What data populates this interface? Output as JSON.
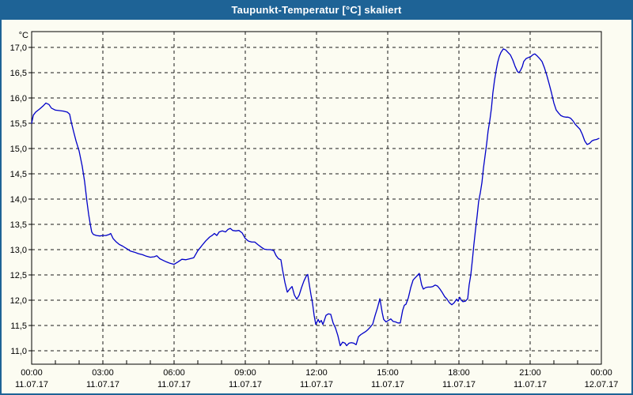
{
  "window": {
    "title": "Taupunkt-Temperatur [°C] skaliert"
  },
  "colors": {
    "titlebar_bg": "#1E6396",
    "title_text": "#FFFFFF",
    "frame_border": "#1E6396",
    "client_bg": "#FCFCF2",
    "plot_border": "#000000",
    "grid": "#1A1A1A",
    "line": "#0000C8",
    "tick_text": "#000000"
  },
  "chart_data": {
    "type": "line",
    "title": "Taupunkt-Temperatur [°C] skaliert",
    "y_unit": "°C",
    "xlabel": "",
    "ylabel": "Taupunkt-Temperatur [°C]",
    "x_axis_hours_range": [
      0,
      24
    ],
    "ylim": [
      10.75,
      17.3
    ],
    "grid": "dashed horizontal and vertical",
    "legend_position": "none",
    "y_ticks": [
      {
        "value": 17.0,
        "label": "17,0"
      },
      {
        "value": 16.5,
        "label": "16,5"
      },
      {
        "value": 16.0,
        "label": "16,0"
      },
      {
        "value": 15.5,
        "label": "15,5"
      },
      {
        "value": 15.0,
        "label": "15,0"
      },
      {
        "value": 14.5,
        "label": "14,5"
      },
      {
        "value": 14.0,
        "label": "14,0"
      },
      {
        "value": 13.5,
        "label": "13,5"
      },
      {
        "value": 13.0,
        "label": "13,0"
      },
      {
        "value": 12.5,
        "label": "12,5"
      },
      {
        "value": 12.0,
        "label": "12,0"
      },
      {
        "value": 11.5,
        "label": "11,5"
      },
      {
        "value": 11.0,
        "label": "11,0"
      }
    ],
    "x_ticks": [
      {
        "hour": 0,
        "time": "00:00",
        "date": "11.07.17"
      },
      {
        "hour": 3,
        "time": "03:00",
        "date": "11.07.17"
      },
      {
        "hour": 6,
        "time": "06:00",
        "date": "11.07.17"
      },
      {
        "hour": 9,
        "time": "09:00",
        "date": "11.07.17"
      },
      {
        "hour": 12,
        "time": "12:00",
        "date": "11.07.17"
      },
      {
        "hour": 15,
        "time": "15:00",
        "date": "11.07.17"
      },
      {
        "hour": 18,
        "time": "18:00",
        "date": "11.07.17"
      },
      {
        "hour": 21,
        "time": "21:00",
        "date": "11.07.17"
      },
      {
        "hour": 24,
        "time": "00:00",
        "date": "12.07.17"
      }
    ],
    "minor_tick_every_hours": 1,
    "series": [
      {
        "name": "Taupunkt-Temperatur",
        "points": [
          [
            0.0,
            15.5
          ],
          [
            0.07,
            15.66
          ],
          [
            0.17,
            15.72
          ],
          [
            0.33,
            15.78
          ],
          [
            0.5,
            15.85
          ],
          [
            0.6,
            15.9
          ],
          [
            0.73,
            15.87
          ],
          [
            0.83,
            15.8
          ],
          [
            1.0,
            15.76
          ],
          [
            1.17,
            15.75
          ],
          [
            1.33,
            15.74
          ],
          [
            1.5,
            15.72
          ],
          [
            1.6,
            15.68
          ],
          [
            1.67,
            15.52
          ],
          [
            1.77,
            15.33
          ],
          [
            1.87,
            15.15
          ],
          [
            2.0,
            14.95
          ],
          [
            2.13,
            14.65
          ],
          [
            2.23,
            14.35
          ],
          [
            2.33,
            13.95
          ],
          [
            2.4,
            13.7
          ],
          [
            2.47,
            13.5
          ],
          [
            2.53,
            13.35
          ],
          [
            2.6,
            13.3
          ],
          [
            2.73,
            13.28
          ],
          [
            2.87,
            13.27
          ],
          [
            3.0,
            13.28
          ],
          [
            3.13,
            13.28
          ],
          [
            3.27,
            13.3
          ],
          [
            3.33,
            13.32
          ],
          [
            3.43,
            13.22
          ],
          [
            3.57,
            13.15
          ],
          [
            3.7,
            13.1
          ],
          [
            3.83,
            13.07
          ],
          [
            4.0,
            13.02
          ],
          [
            4.17,
            12.97
          ],
          [
            4.33,
            12.95
          ],
          [
            4.5,
            12.92
          ],
          [
            4.67,
            12.9
          ],
          [
            4.83,
            12.87
          ],
          [
            5.0,
            12.85
          ],
          [
            5.17,
            12.86
          ],
          [
            5.27,
            12.88
          ],
          [
            5.4,
            12.82
          ],
          [
            5.53,
            12.79
          ],
          [
            5.67,
            12.76
          ],
          [
            5.83,
            12.73
          ],
          [
            6.0,
            12.71
          ],
          [
            6.17,
            12.76
          ],
          [
            6.33,
            12.81
          ],
          [
            6.5,
            12.8
          ],
          [
            6.67,
            12.82
          ],
          [
            6.83,
            12.84
          ],
          [
            7.0,
            12.98
          ],
          [
            7.17,
            13.08
          ],
          [
            7.33,
            13.17
          ],
          [
            7.5,
            13.25
          ],
          [
            7.6,
            13.28
          ],
          [
            7.7,
            13.32
          ],
          [
            7.8,
            13.28
          ],
          [
            7.9,
            13.35
          ],
          [
            8.03,
            13.37
          ],
          [
            8.17,
            13.35
          ],
          [
            8.27,
            13.4
          ],
          [
            8.37,
            13.42
          ],
          [
            8.47,
            13.38
          ],
          [
            8.6,
            13.37
          ],
          [
            8.73,
            13.38
          ],
          [
            8.87,
            13.33
          ],
          [
            9.0,
            13.22
          ],
          [
            9.13,
            13.17
          ],
          [
            9.27,
            13.15
          ],
          [
            9.4,
            13.15
          ],
          [
            9.53,
            13.1
          ],
          [
            9.67,
            13.05
          ],
          [
            9.8,
            13.01
          ],
          [
            9.93,
            13.0
          ],
          [
            10.07,
            13.0
          ],
          [
            10.2,
            12.98
          ],
          [
            10.3,
            12.88
          ],
          [
            10.4,
            12.82
          ],
          [
            10.5,
            12.8
          ],
          [
            10.57,
            12.6
          ],
          [
            10.67,
            12.35
          ],
          [
            10.77,
            12.16
          ],
          [
            10.87,
            12.22
          ],
          [
            10.97,
            12.27
          ],
          [
            11.07,
            12.1
          ],
          [
            11.17,
            12.02
          ],
          [
            11.27,
            12.1
          ],
          [
            11.37,
            12.25
          ],
          [
            11.47,
            12.38
          ],
          [
            11.57,
            12.48
          ],
          [
            11.63,
            12.51
          ],
          [
            11.7,
            12.3
          ],
          [
            11.77,
            12.1
          ],
          [
            11.83,
            11.95
          ],
          [
            11.9,
            11.7
          ],
          [
            11.97,
            11.52
          ],
          [
            12.07,
            11.62
          ],
          [
            12.13,
            11.56
          ],
          [
            12.2,
            11.6
          ],
          [
            12.27,
            11.52
          ],
          [
            12.33,
            11.6
          ],
          [
            12.4,
            11.7
          ],
          [
            12.5,
            11.73
          ],
          [
            12.6,
            11.72
          ],
          [
            12.7,
            11.55
          ],
          [
            12.8,
            11.45
          ],
          [
            12.9,
            11.3
          ],
          [
            13.0,
            11.1
          ],
          [
            13.1,
            11.17
          ],
          [
            13.2,
            11.15
          ],
          [
            13.27,
            11.1
          ],
          [
            13.37,
            11.15
          ],
          [
            13.47,
            11.16
          ],
          [
            13.57,
            11.15
          ],
          [
            13.67,
            11.12
          ],
          [
            13.77,
            11.28
          ],
          [
            13.87,
            11.32
          ],
          [
            13.97,
            11.35
          ],
          [
            14.07,
            11.38
          ],
          [
            14.17,
            11.42
          ],
          [
            14.27,
            11.47
          ],
          [
            14.37,
            11.53
          ],
          [
            14.47,
            11.7
          ],
          [
            14.57,
            11.85
          ],
          [
            14.67,
            12.03
          ],
          [
            14.77,
            11.75
          ],
          [
            14.83,
            11.62
          ],
          [
            14.93,
            11.57
          ],
          [
            15.03,
            11.6
          ],
          [
            15.13,
            11.63
          ],
          [
            15.23,
            11.58
          ],
          [
            15.33,
            11.57
          ],
          [
            15.43,
            11.55
          ],
          [
            15.53,
            11.55
          ],
          [
            15.63,
            11.8
          ],
          [
            15.7,
            11.9
          ],
          [
            15.77,
            11.92
          ],
          [
            15.87,
            12.05
          ],
          [
            15.97,
            12.25
          ],
          [
            16.07,
            12.4
          ],
          [
            16.17,
            12.45
          ],
          [
            16.27,
            12.5
          ],
          [
            16.33,
            12.53
          ],
          [
            16.43,
            12.3
          ],
          [
            16.5,
            12.22
          ],
          [
            16.6,
            12.25
          ],
          [
            16.7,
            12.26
          ],
          [
            16.8,
            12.26
          ],
          [
            16.9,
            12.27
          ],
          [
            17.0,
            12.3
          ],
          [
            17.1,
            12.28
          ],
          [
            17.2,
            12.22
          ],
          [
            17.3,
            12.15
          ],
          [
            17.4,
            12.07
          ],
          [
            17.5,
            12.02
          ],
          [
            17.6,
            11.95
          ],
          [
            17.7,
            11.91
          ],
          [
            17.8,
            11.95
          ],
          [
            17.9,
            12.02
          ],
          [
            17.97,
            11.98
          ],
          [
            18.03,
            12.06
          ],
          [
            18.1,
            12.0
          ],
          [
            18.17,
            11.97
          ],
          [
            18.27,
            11.98
          ],
          [
            18.37,
            12.03
          ],
          [
            18.43,
            12.3
          ],
          [
            18.5,
            12.5
          ],
          [
            18.57,
            12.81
          ],
          [
            18.63,
            13.1
          ],
          [
            18.7,
            13.4
          ],
          [
            18.77,
            13.68
          ],
          [
            18.83,
            13.95
          ],
          [
            18.9,
            14.12
          ],
          [
            18.97,
            14.33
          ],
          [
            19.03,
            14.6
          ],
          [
            19.1,
            14.85
          ],
          [
            19.17,
            15.1
          ],
          [
            19.23,
            15.35
          ],
          [
            19.3,
            15.55
          ],
          [
            19.37,
            15.8
          ],
          [
            19.43,
            16.1
          ],
          [
            19.5,
            16.35
          ],
          [
            19.57,
            16.55
          ],
          [
            19.63,
            16.7
          ],
          [
            19.7,
            16.82
          ],
          [
            19.77,
            16.9
          ],
          [
            19.87,
            16.97
          ],
          [
            19.97,
            16.95
          ],
          [
            20.07,
            16.9
          ],
          [
            20.17,
            16.85
          ],
          [
            20.27,
            16.75
          ],
          [
            20.37,
            16.62
          ],
          [
            20.47,
            16.52
          ],
          [
            20.53,
            16.5
          ],
          [
            20.6,
            16.55
          ],
          [
            20.67,
            16.62
          ],
          [
            20.73,
            16.72
          ],
          [
            20.83,
            16.78
          ],
          [
            20.93,
            16.8
          ],
          [
            21.03,
            16.82
          ],
          [
            21.13,
            16.86
          ],
          [
            21.2,
            16.87
          ],
          [
            21.3,
            16.83
          ],
          [
            21.4,
            16.78
          ],
          [
            21.5,
            16.72
          ],
          [
            21.6,
            16.6
          ],
          [
            21.7,
            16.45
          ],
          [
            21.8,
            16.28
          ],
          [
            21.9,
            16.1
          ],
          [
            22.0,
            15.9
          ],
          [
            22.1,
            15.76
          ],
          [
            22.2,
            15.7
          ],
          [
            22.3,
            15.65
          ],
          [
            22.4,
            15.63
          ],
          [
            22.5,
            15.62
          ],
          [
            22.6,
            15.62
          ],
          [
            22.7,
            15.6
          ],
          [
            22.8,
            15.55
          ],
          [
            22.9,
            15.48
          ],
          [
            23.0,
            15.43
          ],
          [
            23.1,
            15.38
          ],
          [
            23.2,
            15.28
          ],
          [
            23.3,
            15.15
          ],
          [
            23.4,
            15.08
          ],
          [
            23.5,
            15.1
          ],
          [
            23.6,
            15.15
          ],
          [
            23.7,
            15.17
          ],
          [
            23.8,
            15.18
          ],
          [
            23.9,
            15.2
          ]
        ]
      }
    ]
  }
}
